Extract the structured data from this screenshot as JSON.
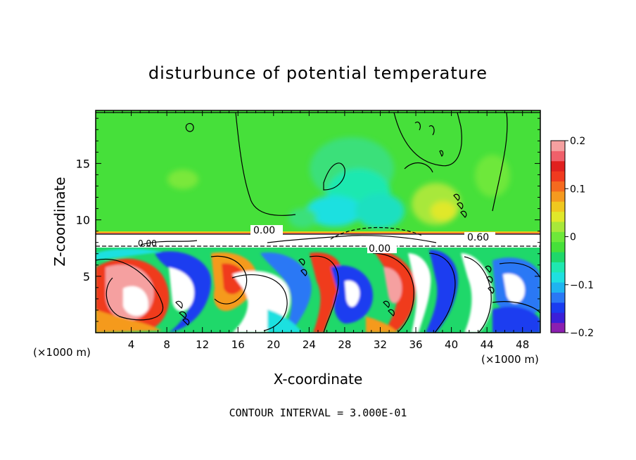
{
  "chart_data": {
    "type": "heatmap",
    "title": "disturbunce of potential temperature",
    "xlabel": "X-coordinate",
    "ylabel": "Z-coordinate",
    "x_unit_label": "(×1000 m)",
    "z_unit_label": "(×1000 m)",
    "xlim": [
      0,
      50
    ],
    "ylim": [
      0,
      19.7
    ],
    "x_ticks": [
      "4",
      "8",
      "12",
      "16",
      "20",
      "24",
      "28",
      "32",
      "36",
      "40",
      "44",
      "48"
    ],
    "x_tick_values": [
      4,
      8,
      12,
      16,
      20,
      24,
      28,
      32,
      36,
      40,
      44,
      48
    ],
    "y_ticks": [
      "5",
      "10",
      "15"
    ],
    "y_tick_values": [
      5,
      10,
      15
    ],
    "colorbar": {
      "min": -0.2,
      "max": 0.2,
      "tick_labels": [
        "0.2",
        "0.1",
        "0",
        "−0.1",
        "−0.2"
      ],
      "tick_values": [
        0.2,
        0.1,
        0,
        -0.1,
        -0.2
      ],
      "colors": [
        "#8b1fb0",
        "#3b1fd8",
        "#1a3cf0",
        "#2a78f5",
        "#1fb4f0",
        "#1fe0e0",
        "#1fe8b0",
        "#1fd86a",
        "#46e03a",
        "#6ee83a",
        "#a8e83a",
        "#e0e82a",
        "#f0c81f",
        "#f59a1f",
        "#f56a1f",
        "#f03a1f",
        "#e0201f",
        "#f0606a",
        "#f5a0a0"
      ]
    },
    "contour_labels": [
      "0.00",
      "0.00",
      "0.60",
      "0.00"
    ],
    "footer": "CONTOUR INTERVAL = 3.000E-01"
  }
}
